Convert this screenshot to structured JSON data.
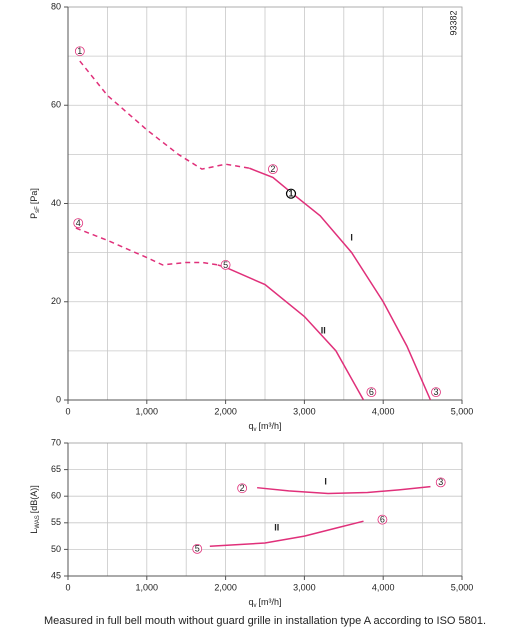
{
  "chart_data": [
    {
      "type": "line",
      "id_text": "93382",
      "x_label": {
        "main": "q",
        "sub": "v",
        "unit": "[m³/h]"
      },
      "y_label": {
        "main": "P",
        "sub": "sF",
        "unit": "[Pa]"
      },
      "xlim": [
        0,
        5000
      ],
      "ylim": [
        0,
        80
      ],
      "xticks": [
        0,
        {
          "value": 1000,
          "label": "1,000"
        },
        {
          "value": 2000,
          "label": "2,000"
        },
        {
          "value": 3000,
          "label": "3,000"
        },
        {
          "value": 4000,
          "label": "4,000"
        },
        {
          "value": 5000,
          "label": "5,000"
        }
      ],
      "yticks": [
        0,
        20,
        40,
        60,
        80
      ],
      "xgrid": [
        500,
        1000,
        1500,
        2000,
        2500,
        3000,
        3500,
        4000,
        4500
      ],
      "ygrid": [
        10,
        20,
        30,
        40,
        50,
        60,
        70
      ],
      "color": "#e0307a",
      "series": [
        {
          "name": "I",
          "dashed": {
            "x": [
              150,
              500,
              1000,
              1400,
              1700,
              2000,
              2300
            ],
            "values": [
              69,
              62,
              55,
              50,
              47,
              48,
              47.2
            ]
          },
          "solid": {
            "x": [
              2300,
              2600,
              2850,
              3200,
              3600,
              4000,
              4300,
              4600
            ],
            "values": [
              47.2,
              45.3,
              42,
              37.5,
              30,
              20,
              11,
              0
            ]
          },
          "label_at": [
            3600,
            33
          ]
        },
        {
          "name": "II",
          "dashed": {
            "x": [
              100,
              500,
              1000,
              1200,
              1500,
              1700,
              1900
            ],
            "values": [
              35,
              32.5,
              29,
              27.5,
              28,
              28,
              27.5
            ]
          },
          "solid": {
            "x": [
              1900,
              2000,
              2500,
              3000,
              3400,
              3750
            ],
            "values": [
              27.5,
              27,
              23.5,
              17,
              10,
              0
            ]
          },
          "label_at": [
            3240,
            14
          ]
        }
      ],
      "markers": [
        {
          "text": "1",
          "x": 150,
          "y": 71
        },
        {
          "text": "2",
          "x": 2600,
          "y": 47
        },
        {
          "text": "4",
          "x": 130,
          "y": 36
        },
        {
          "text": "5",
          "x": 2000,
          "y": 27.5
        },
        {
          "text": "6",
          "x": 3850,
          "y": 1.6
        },
        {
          "text": "3",
          "x": 4670,
          "y": 1.6
        }
      ],
      "operating_point": {
        "text": "1",
        "x": 2830,
        "y": 42
      }
    },
    {
      "type": "line",
      "x_label": {
        "main": "q",
        "sub": "v",
        "unit": "[m³/h]"
      },
      "y_label": {
        "main": "L",
        "sub": "WAS",
        "unit": "[dB(A)]"
      },
      "xlim": [
        0,
        5000
      ],
      "ylim": [
        45,
        70
      ],
      "xticks": [
        0,
        {
          "value": 1000,
          "label": "1,000"
        },
        {
          "value": 2000,
          "label": "2,000"
        },
        {
          "value": 3000,
          "label": "3,000"
        },
        {
          "value": 4000,
          "label": "4,000"
        },
        {
          "value": 5000,
          "label": "5,000"
        }
      ],
      "yticks": [
        45,
        50,
        55,
        60,
        65,
        70
      ],
      "xgrid": [
        500,
        1000,
        1500,
        2000,
        2500,
        3000,
        3500,
        4000,
        4500
      ],
      "ygrid": [
        50,
        55,
        60,
        65
      ],
      "color": "#e0307a",
      "series": [
        {
          "name": "I",
          "solid": {
            "x": [
              2400,
              2800,
              3300,
              3800,
              4200,
              4600
            ],
            "values": [
              61.6,
              61,
              60.5,
              60.7,
              61.2,
              61.8
            ]
          },
          "label_at": [
            3270,
            62.6
          ]
        },
        {
          "name": "II",
          "solid": {
            "x": [
              1800,
              2500,
              3000,
              3400,
              3750
            ],
            "values": [
              50.6,
              51.2,
              52.5,
              54,
              55.3
            ]
          },
          "label_at": [
            2650,
            54
          ]
        }
      ],
      "markers": [
        {
          "text": "2",
          "x": 2210,
          "y": 61.5
        },
        {
          "text": "3",
          "x": 4730,
          "y": 62.6
        },
        {
          "text": "5",
          "x": 1640,
          "y": 50.1
        },
        {
          "text": "6",
          "x": 3990,
          "y": 55.6
        }
      ]
    }
  ],
  "footnote": "Measured in full bell mouth without guard grille in installation type A according to ISO 5801."
}
